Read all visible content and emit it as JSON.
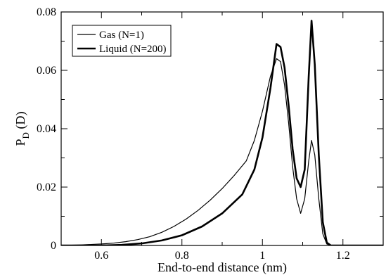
{
  "chart_data": {
    "type": "line",
    "title": "",
    "xlabel": "End-to-end distance (nm)",
    "ylabel": "P",
    "ylabel_sub": "D",
    "ylabel_suffix": " (D)",
    "xlim": [
      0.5,
      1.3
    ],
    "ylim": [
      0,
      0.08
    ],
    "xticks": [
      0.6,
      0.8,
      1.0,
      1.2
    ],
    "xtick_labels": [
      "0.6",
      "0.8",
      "1",
      "1.2"
    ],
    "yticks": [
      0,
      0.02,
      0.04,
      0.06,
      0.08
    ],
    "ytick_labels": [
      "0",
      "0.02",
      "0.04",
      "0.06",
      "0.08"
    ],
    "grid": false,
    "legend_position": "top-left",
    "series": [
      {
        "name": "Gas (N=1)",
        "color": "#000000",
        "style": "thin",
        "x": [
          0.5,
          0.55,
          0.6,
          0.63,
          0.66,
          0.69,
          0.72,
          0.75,
          0.78,
          0.81,
          0.84,
          0.87,
          0.9,
          0.93,
          0.96,
          0.98,
          1.0,
          1.02,
          1.035,
          1.045,
          1.055,
          1.065,
          1.075,
          1.085,
          1.095,
          1.105,
          1.115,
          1.122,
          1.13,
          1.14,
          1.15,
          1.16,
          1.17,
          1.2,
          1.3
        ],
        "y": [
          0.0,
          0.0002,
          0.0005,
          0.0008,
          0.0013,
          0.002,
          0.003,
          0.0045,
          0.0065,
          0.009,
          0.012,
          0.0155,
          0.0195,
          0.024,
          0.029,
          0.036,
          0.046,
          0.058,
          0.064,
          0.063,
          0.055,
          0.042,
          0.027,
          0.016,
          0.011,
          0.016,
          0.029,
          0.036,
          0.031,
          0.016,
          0.004,
          0.0005,
          0.0,
          0.0,
          0.0
        ]
      },
      {
        "name": "Liquid (N=200)",
        "color": "#000000",
        "style": "thick",
        "x": [
          0.5,
          0.6,
          0.65,
          0.7,
          0.75,
          0.8,
          0.85,
          0.9,
          0.95,
          0.98,
          1.0,
          1.02,
          1.035,
          1.045,
          1.055,
          1.065,
          1.075,
          1.085,
          1.095,
          1.105,
          1.115,
          1.122,
          1.13,
          1.14,
          1.15,
          1.16,
          1.17,
          1.2,
          1.3
        ],
        "y": [
          0.0,
          0.0,
          0.0002,
          0.0007,
          0.0017,
          0.0035,
          0.0065,
          0.011,
          0.0175,
          0.026,
          0.037,
          0.054,
          0.069,
          0.068,
          0.061,
          0.048,
          0.033,
          0.023,
          0.02,
          0.026,
          0.058,
          0.077,
          0.062,
          0.031,
          0.008,
          0.001,
          0.0,
          0.0,
          0.0
        ]
      }
    ]
  }
}
